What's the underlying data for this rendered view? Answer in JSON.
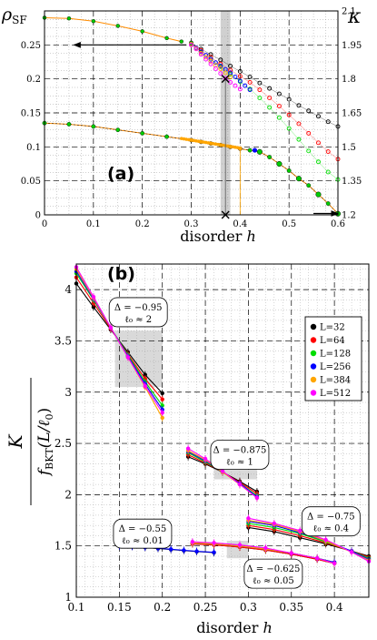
{
  "chart_data": [
    {
      "panel_label": "(a)",
      "type": "scatter",
      "xlabel_main": "disorder",
      "xlabel_var": "h",
      "ylabel_left": "ρ",
      "ylabel_left_sub": "SF",
      "ylabel_right": "κ",
      "xlim": [
        0,
        0.6
      ],
      "ylim_left": [
        0,
        0.3
      ],
      "ylim_right": [
        1.2,
        2.1
      ],
      "xticks": [
        0,
        0.1,
        0.2,
        0.3,
        0.4,
        0.5,
        0.6
      ],
      "xtick_labels": [
        "0",
        "0.1",
        "0.2",
        "0.3",
        "0.4",
        "0.5",
        "0.6"
      ],
      "yticks_left": [
        0,
        0.05,
        0.1,
        0.15,
        0.2,
        0.25
      ],
      "ytick_labels_left": [
        "0",
        "0.05",
        "0.1",
        "0.15",
        "0.2",
        "0.25"
      ],
      "yticks_right": [
        1.2,
        1.35,
        1.5,
        1.65,
        1.8,
        1.95,
        2.1
      ],
      "ytick_labels_right": [
        "1.2",
        "1.35",
        "1.5",
        "1.65",
        "1.8",
        "1.95",
        "2.1"
      ],
      "grid": true,
      "shaded_band_x": [
        0.36,
        0.38
      ],
      "critical_markers": [
        {
          "x": 0.37,
          "y": 0.2
        },
        {
          "x": 0.37,
          "y": 0.0
        }
      ],
      "arrows": [
        {
          "from_x": 0.29,
          "to_x": 0.06,
          "y": 0.25,
          "points_to": "left-axis"
        },
        {
          "from_x": 0.55,
          "to_x": 0.6,
          "y": 0.002,
          "points_to": "right-axis"
        }
      ],
      "rho_sf_series": [
        {
          "color": "#000000",
          "x": [
            0.3,
            0.32,
            0.34,
            0.36,
            0.38,
            0.4,
            0.42,
            0.44,
            0.46,
            0.48,
            0.5,
            0.52,
            0.54,
            0.56,
            0.58,
            0.6
          ],
          "y": [
            0.253,
            0.244,
            0.236,
            0.228,
            0.219,
            0.211,
            0.203,
            0.194,
            0.186,
            0.178,
            0.17,
            0.161,
            0.153,
            0.145,
            0.137,
            0.13
          ]
        },
        {
          "color": "#ff0000",
          "x": [
            0.3,
            0.32,
            0.34,
            0.36,
            0.38,
            0.4,
            0.42,
            0.44,
            0.46,
            0.48,
            0.5,
            0.52,
            0.54,
            0.56,
            0.58,
            0.6
          ],
          "y": [
            0.252,
            0.242,
            0.232,
            0.222,
            0.213,
            0.204,
            0.195,
            0.184,
            0.172,
            0.16,
            0.147,
            0.134,
            0.12,
            0.106,
            0.093,
            0.082
          ]
        },
        {
          "color": "#00dd00",
          "x": [
            0.3,
            0.32,
            0.34,
            0.36,
            0.38,
            0.4,
            0.42,
            0.44,
            0.46,
            0.48,
            0.5,
            0.52,
            0.54,
            0.56,
            0.58,
            0.6
          ],
          "y": [
            0.252,
            0.24,
            0.229,
            0.218,
            0.207,
            0.196,
            0.185,
            0.172,
            0.158,
            0.143,
            0.127,
            0.111,
            0.094,
            0.078,
            0.063,
            0.052
          ]
        },
        {
          "color": "#0000ff",
          "x": [
            0.3,
            0.31,
            0.32,
            0.33,
            0.34,
            0.35,
            0.36,
            0.37,
            0.38,
            0.39,
            0.4,
            0.41,
            0.42
          ],
          "y": [
            0.251,
            0.246,
            0.24,
            0.235,
            0.229,
            0.224,
            0.219,
            0.214,
            0.209,
            0.203,
            0.197,
            0.19,
            0.184
          ]
        },
        {
          "color": "#ffa500",
          "x": [
            0.3,
            0.31,
            0.32,
            0.33,
            0.34,
            0.35,
            0.36,
            0.37,
            0.38
          ],
          "y": [
            0.251,
            0.245,
            0.238,
            0.232,
            0.226,
            0.22,
            0.215,
            0.209,
            0.203
          ]
        },
        {
          "color": "#ff00ff",
          "x": [
            0.3,
            0.31,
            0.32,
            0.33,
            0.34,
            0.35,
            0.36,
            0.37,
            0.38,
            0.39,
            0.4
          ],
          "y": [
            0.25,
            0.244,
            0.236,
            0.229,
            0.222,
            0.215,
            0.208,
            0.201,
            0.195,
            0.19,
            0.185
          ]
        }
      ],
      "rho_sf_common": {
        "x": [
          0,
          0.05,
          0.1,
          0.15,
          0.2,
          0.25,
          0.28
        ],
        "y": [
          0.29,
          0.289,
          0.285,
          0.278,
          0.27,
          0.26,
          0.255
        ]
      },
      "kappa_series": {
        "points_x": [
          0,
          0.05,
          0.1,
          0.15,
          0.2,
          0.25,
          0.3,
          0.32,
          0.34,
          0.36,
          0.38,
          0.4,
          0.42,
          0.44,
          0.46,
          0.48,
          0.5,
          0.52,
          0.54,
          0.56,
          0.58,
          0.6
        ],
        "points_y": [
          1.605,
          1.6,
          1.59,
          1.575,
          1.56,
          1.545,
          1.53,
          1.522,
          1.515,
          1.508,
          1.5,
          1.492,
          1.485,
          1.478,
          1.455,
          1.425,
          1.395,
          1.36,
          1.33,
          1.29,
          1.25,
          1.205
        ],
        "orange_dense_x_range": [
          0.28,
          0.4
        ],
        "blue_marker": {
          "x": 0.43,
          "y": 1.485
        },
        "green_markers_x": [
          0.44,
          0.48,
          0.52,
          0.56,
          0.6
        ]
      }
    },
    {
      "panel_label": "(b)",
      "type": "scatter",
      "xlabel_main": "disorder",
      "xlabel_var": "h",
      "ylabel_numerator": "K",
      "ylabel_denominator": "f",
      "ylabel_denominator_sub": "BKT",
      "ylabel_denominator_arg": "(L/ℓ",
      "ylabel_denominator_arg_sub": "0",
      "ylabel_denominator_close": ")",
      "xlim": [
        0.1,
        0.44
      ],
      "ylim": [
        1,
        4.25
      ],
      "xticks": [
        0.1,
        0.15,
        0.2,
        0.25,
        0.3,
        0.35,
        0.4
      ],
      "xtick_labels": [
        "0.1",
        "0.15",
        "0.2",
        "0.25",
        "0.3",
        "0.35",
        "0.4"
      ],
      "yticks": [
        1,
        1.5,
        2,
        2.5,
        3,
        3.5,
        4
      ],
      "ytick_labels": [
        "1",
        "1.5",
        "2",
        "2.5",
        "3",
        "3.5",
        "4"
      ],
      "grid": true,
      "legend_position": "right",
      "legend": [
        {
          "label": "L=32",
          "color": "#000000"
        },
        {
          "label": "L=64",
          "color": "#ff0000"
        },
        {
          "label": "L=128",
          "color": "#00dd00"
        },
        {
          "label": "L=256",
          "color": "#0000ff"
        },
        {
          "label": "L=384",
          "color": "#ffa500"
        },
        {
          "label": "L=512",
          "color": "#ff00ff"
        }
      ],
      "shaded_regions": [
        {
          "x": [
            0.145,
            0.2
          ],
          "y": [
            3.05,
            3.6
          ]
        },
        {
          "x": [
            0.26,
            0.31
          ],
          "y": [
            2.15,
            2.45
          ]
        },
        {
          "x": [
            0.275,
            0.3
          ],
          "y": [
            1.38,
            1.55
          ]
        }
      ],
      "annotations": [
        {
          "line1": "Δ = −0.95",
          "line2": "ℓ₀ ≈ 2",
          "x": 0.172,
          "y": 3.78
        },
        {
          "line1": "Δ = −0.875",
          "line2": "ℓ₀ ≈ 1",
          "x": 0.29,
          "y": 2.39
        },
        {
          "line1": "Δ = −0.55",
          "line2": "ℓ₀ ≈ 0.01",
          "x": 0.177,
          "y": 1.62
        },
        {
          "line1": "Δ = −0.75",
          "line2": "ℓ₀ ≈ 0.4",
          "x": 0.396,
          "y": 1.74
        },
        {
          "line1": "Δ = −0.625",
          "line2": "ℓ₀ ≈ 0.05",
          "x": 0.329,
          "y": 1.23
        }
      ],
      "groups": [
        {
          "name": "Δ = −0.95",
          "x": [
            0.1,
            0.12,
            0.14,
            0.16,
            0.18,
            0.2
          ],
          "series": [
            {
              "color": "#000000",
              "y": [
                4.06,
                3.83,
                3.61,
                3.39,
                3.17,
                2.99
              ]
            },
            {
              "color": "#ff0000",
              "y": [
                4.12,
                3.87,
                3.62,
                3.37,
                3.13,
                2.93
              ]
            },
            {
              "color": "#00dd00",
              "y": [
                4.16,
                3.9,
                3.63,
                3.36,
                3.1,
                2.87
              ]
            },
            {
              "color": "#0000ff",
              "y": [
                4.18,
                3.91,
                3.63,
                3.35,
                3.08,
                2.83
              ]
            },
            {
              "color": "#ffa500",
              "y": [
                4.2,
                3.92,
                3.63,
                3.34,
                3.05,
                2.75
              ]
            },
            {
              "color": "#ff00ff",
              "y": [
                4.22,
                3.93,
                3.63,
                3.34,
                3.06,
                2.8
              ]
            }
          ]
        },
        {
          "name": "Δ = −0.875",
          "x": [
            0.23,
            0.25,
            0.27,
            0.29,
            0.31
          ],
          "series": [
            {
              "color": "#000000",
              "y": [
                2.37,
                2.3,
                2.22,
                2.13,
                2.03
              ]
            },
            {
              "color": "#ff0000",
              "y": [
                2.39,
                2.31,
                2.22,
                2.12,
                2.01
              ]
            },
            {
              "color": "#00dd00",
              "y": [
                2.41,
                2.32,
                2.22,
                2.11,
                1.99
              ]
            },
            {
              "color": "#0000ff",
              "y": [
                2.42,
                2.33,
                2.22,
                2.11,
                1.98
              ]
            },
            {
              "color": "#ffa500",
              "y": [
                2.43,
                2.34,
                2.22,
                2.1,
                1.97
              ]
            },
            {
              "color": "#ff00ff",
              "y": [
                2.45,
                2.35,
                2.23,
                2.1,
                1.97
              ]
            }
          ]
        },
        {
          "name": "Δ = −0.75",
          "x": [
            0.3,
            0.33,
            0.36,
            0.39,
            0.42,
            0.44
          ],
          "series": [
            {
              "color": "#000000",
              "y": [
                1.68,
                1.64,
                1.58,
                1.52,
                1.45,
                1.4
              ]
            },
            {
              "color": "#ff0000",
              "y": [
                1.7,
                1.66,
                1.6,
                1.53,
                1.45,
                1.39
              ]
            },
            {
              "color": "#00dd00",
              "y": [
                1.72,
                1.68,
                1.62,
                1.54,
                1.45,
                1.38
              ]
            },
            {
              "color": "#0000ff",
              "y": [
                1.74,
                1.7,
                1.63,
                1.55,
                1.45,
                1.37
              ]
            },
            {
              "color": "#ffa500",
              "y": [
                1.75,
                1.71,
                1.64,
                1.55,
                1.44,
                1.36
              ]
            },
            {
              "color": "#ff00ff",
              "y": [
                1.77,
                1.72,
                1.65,
                1.56,
                1.44,
                1.35
              ]
            }
          ]
        },
        {
          "name": "Δ = −0.625",
          "x": [
            0.235,
            0.26,
            0.29,
            0.32,
            0.35,
            0.38,
            0.4
          ],
          "series": [
            {
              "color": "#000000",
              "y": [
                1.52,
                1.51,
                1.49,
                1.46,
                1.42,
                1.37,
                1.33
              ]
            },
            {
              "color": "#ff0000",
              "y": [
                1.52,
                1.51,
                1.49,
                1.46,
                1.42,
                1.37,
                1.33
              ]
            },
            {
              "color": "#00dd00",
              "y": [
                1.53,
                1.52,
                1.5,
                1.47,
                1.43,
                1.38,
                1.34
              ]
            },
            {
              "color": "#0000ff",
              "y": [
                1.53,
                1.52,
                1.5,
                1.47,
                1.43,
                1.38,
                1.34
              ]
            },
            {
              "color": "#ffa500",
              "y": [
                1.53,
                1.52,
                1.5,
                1.47,
                1.43,
                1.38,
                1.33
              ]
            },
            {
              "color": "#ff00ff",
              "y": [
                1.54,
                1.53,
                1.51,
                1.48,
                1.43,
                1.38,
                1.33
              ]
            }
          ]
        },
        {
          "name": "Δ = −0.55",
          "x": [
            0.15,
            0.165,
            0.18,
            0.195,
            0.21,
            0.225,
            0.24,
            0.26
          ],
          "series": [
            {
              "color": "#000000",
              "y": [
                1.5,
                1.495,
                1.485,
                1.475,
                1.465,
                1.455,
                1.445,
                1.435
              ]
            },
            {
              "color": "#0000ff",
              "y": [
                1.5,
                1.495,
                1.487,
                1.478,
                1.468,
                1.458,
                1.448,
                1.438
              ]
            }
          ]
        }
      ]
    }
  ]
}
